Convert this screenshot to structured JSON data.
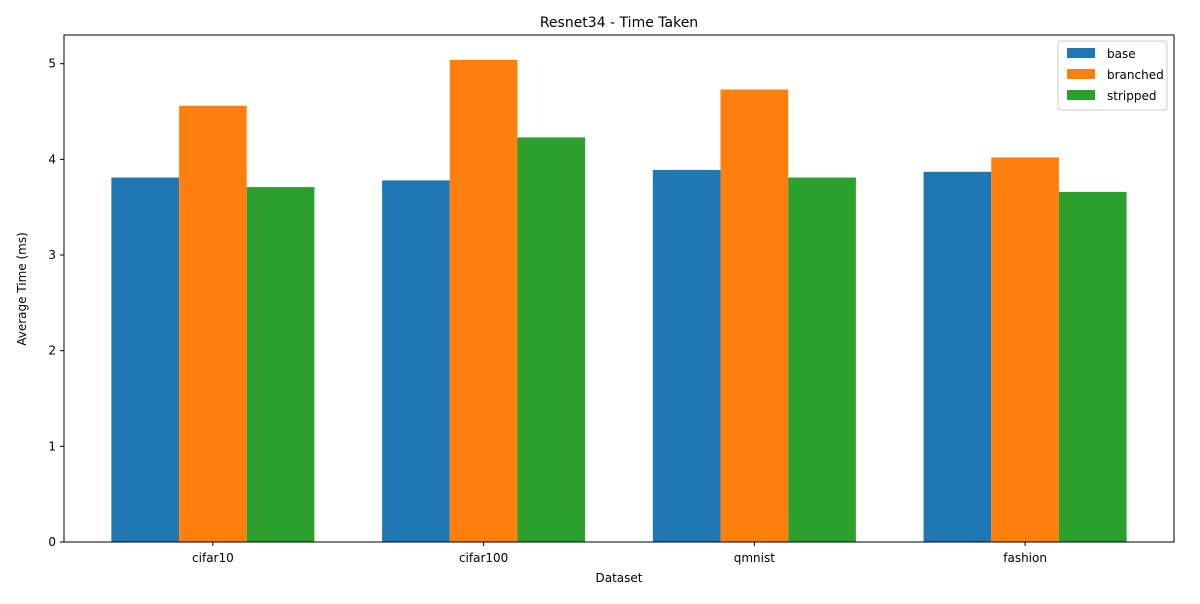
{
  "chart_data": {
    "type": "bar",
    "title": "Resnet34 - Time Taken",
    "xlabel": "Dataset",
    "ylabel": "Average Time (ms)",
    "categories": [
      "cifar10",
      "cifar100",
      "qmnist",
      "fashion"
    ],
    "series": [
      {
        "name": "base",
        "color": "#1f77b4",
        "values": [
          3.81,
          3.78,
          3.89,
          3.87
        ]
      },
      {
        "name": "branched",
        "color": "#ff7f0e",
        "values": [
          4.56,
          5.04,
          4.73,
          4.02
        ]
      },
      {
        "name": "stripped",
        "color": "#2ca02c",
        "values": [
          3.71,
          4.23,
          3.81,
          3.66
        ]
      }
    ],
    "ylim": [
      0,
      5.3
    ],
    "yticks": [
      0,
      1,
      2,
      3,
      4,
      5
    ],
    "grid": false,
    "legend": "top-right"
  }
}
